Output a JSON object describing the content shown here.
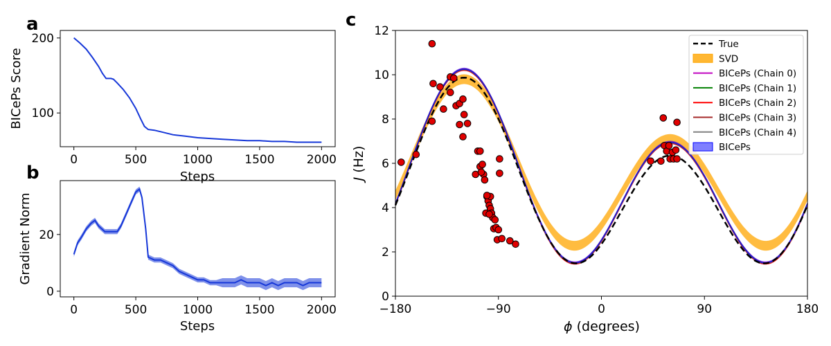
{
  "figure": {
    "panel_labels": {
      "a": "a",
      "b": "b",
      "c": "c"
    }
  },
  "chart_data": [
    {
      "id": "a",
      "type": "line",
      "xlabel": "Steps",
      "ylabel": "BICePs Score",
      "xlim": [
        -110,
        2110
      ],
      "ylim": [
        55,
        210
      ],
      "xticks": [
        0,
        500,
        1000,
        1500,
        2000
      ],
      "yticks": [
        100,
        200
      ],
      "color": "#1637d8",
      "series": [
        {
          "name": "score",
          "x": [
            0,
            50,
            100,
            150,
            200,
            230,
            260,
            300,
            320,
            350,
            400,
            450,
            500,
            540,
            570,
            600,
            650,
            700,
            800,
            900,
            1000,
            1100,
            1200,
            1300,
            1400,
            1500,
            1600,
            1700,
            1800,
            1900,
            2000
          ],
          "y": [
            200,
            193,
            185,
            174,
            162,
            153,
            146,
            146,
            145,
            140,
            131,
            120,
            106,
            92,
            82,
            78,
            77,
            75,
            71,
            69,
            67,
            66,
            65,
            64,
            63,
            63,
            62,
            62,
            61,
            61,
            61
          ]
        }
      ]
    },
    {
      "id": "b",
      "type": "line",
      "xlabel": "Steps",
      "ylabel": "Gradient Norm",
      "xlim": [
        -110,
        2110
      ],
      "ylim": [
        -2,
        39
      ],
      "xticks": [
        0,
        500,
        1000,
        1500,
        2000
      ],
      "yticks": [
        0,
        20
      ],
      "color": "#1637d8",
      "series": [
        {
          "name": "gradient",
          "x": [
            0,
            30,
            60,
            100,
            140,
            170,
            200,
            250,
            300,
            350,
            380,
            420,
            460,
            500,
            530,
            550,
            580,
            600,
            650,
            700,
            750,
            800,
            850,
            900,
            950,
            1000,
            1050,
            1100,
            1150,
            1200,
            1250,
            1300,
            1350,
            1400,
            1450,
            1500,
            1550,
            1600,
            1650,
            1700,
            1750,
            1800,
            1850,
            1900,
            1950,
            2000
          ],
          "y": [
            13,
            17,
            19,
            22,
            24,
            25,
            23,
            21,
            21,
            21,
            23,
            27,
            31,
            35,
            36,
            33,
            22,
            12,
            11,
            11,
            10,
            9,
            7,
            6,
            5,
            4,
            4,
            3,
            3,
            3,
            3,
            3,
            4,
            3,
            3,
            3,
            2,
            3,
            2,
            3,
            3,
            3,
            2,
            3,
            3,
            3
          ]
        }
      ]
    },
    {
      "id": "c",
      "type": "line",
      "xlabel": "ϕ (degrees)",
      "ylabel": "J (Hz)",
      "xlim": [
        -180,
        180
      ],
      "ylim": [
        0,
        12
      ],
      "xticks": [
        -180,
        -90,
        0,
        90,
        180
      ],
      "xticklabels": [
        "−180",
        "−90",
        "0",
        "90",
        "180"
      ],
      "yticks": [
        0,
        2,
        4,
        6,
        8,
        10,
        12
      ],
      "karplus": {
        "true": {
          "A": 6.51,
          "B": -1.76,
          "C": 1.6
        },
        "svd": {
          "A": 6.1,
          "B": -1.35,
          "C": 2.35,
          "band": 0.22
        },
        "biceps": {
          "A": 7.0,
          "B": -1.65,
          "C": 1.6
        }
      },
      "chains": [
        {
          "name": "BICePs (Chain 0)",
          "color": "#bf00bf",
          "offset": 0.02
        },
        {
          "name": "BICePs (Chain 1)",
          "color": "#008000",
          "offset": 0.0
        },
        {
          "name": "BICePs (Chain 2)",
          "color": "#ff0000",
          "offset": -0.05
        },
        {
          "name": "BICePs (Chain 3)",
          "color": "#a52a2a",
          "offset": -0.03
        },
        {
          "name": "BICePs (Chain 4)",
          "color": "#808080",
          "offset": -0.01
        }
      ],
      "legend": {
        "position": "upper right",
        "entries": [
          "True",
          "SVD",
          "BICePs (Chain 0)",
          "BICePs (Chain 1)",
          "BICePs (Chain 2)",
          "BICePs (Chain 3)",
          "BICePs (Chain 4)",
          "BICePs"
        ]
      },
      "points": [
        [
          -175,
          6.05
        ],
        [
          -162,
          6.4
        ],
        [
          -148,
          11.4
        ],
        [
          -148,
          7.9
        ],
        [
          -147,
          9.6
        ],
        [
          -141,
          9.45
        ],
        [
          -138,
          8.45
        ],
        [
          -132,
          9.9
        ],
        [
          -129,
          9.85
        ],
        [
          -127,
          8.6
        ],
        [
          -124,
          7.75
        ],
        [
          -121,
          7.2
        ],
        [
          -120,
          8.2
        ],
        [
          -117,
          7.8
        ],
        [
          -132,
          9.2
        ],
        [
          -124,
          8.7
        ],
        [
          -121,
          8.9
        ],
        [
          -108,
          6.55
        ],
        [
          -106,
          5.85
        ],
        [
          -104,
          5.95
        ],
        [
          -103,
          5.5
        ],
        [
          -102,
          5.25
        ],
        [
          -100,
          4.5
        ],
        [
          -99,
          4.3
        ],
        [
          -98,
          4.1
        ],
        [
          -97,
          3.95
        ],
        [
          -96,
          3.75
        ],
        [
          -95,
          3.55
        ],
        [
          -94,
          3.05
        ],
        [
          -93,
          3.45
        ],
        [
          -92,
          3.1
        ],
        [
          -91,
          2.55
        ],
        [
          -90,
          3.0
        ],
        [
          -89,
          5.55
        ],
        [
          -89,
          6.2
        ],
        [
          -87,
          2.6
        ],
        [
          -80,
          2.5
        ],
        [
          -75,
          2.35
        ],
        [
          -110,
          5.5
        ],
        [
          -101,
          3.75
        ],
        [
          -97,
          4.5
        ],
        [
          -105,
          5.6
        ],
        [
          -106,
          6.55
        ],
        [
          -98,
          3.7
        ],
        [
          -100,
          4.55
        ],
        [
          43,
          6.1
        ],
        [
          52,
          6.1
        ],
        [
          54,
          8.05
        ],
        [
          55,
          6.8
        ],
        [
          57,
          6.55
        ],
        [
          59,
          6.8
        ],
        [
          60,
          6.2
        ],
        [
          62,
          6.5
        ],
        [
          63,
          6.2
        ],
        [
          65,
          6.6
        ],
        [
          66,
          6.2
        ],
        [
          66,
          7.85
        ]
      ]
    }
  ]
}
